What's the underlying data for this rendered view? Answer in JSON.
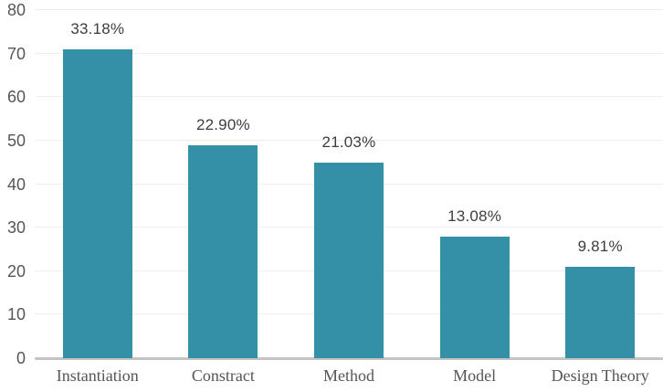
{
  "chart_data": {
    "type": "bar",
    "categories": [
      "Instantiation",
      "Constract",
      "Method",
      "Model",
      "Design Theory"
    ],
    "values": [
      71,
      49,
      45,
      28,
      21
    ],
    "value_labels": [
      "33.18%",
      "22.90%",
      "21.03%",
      "13.08%",
      "9.81%"
    ],
    "title": "",
    "xlabel": "",
    "ylabel": "",
    "ylim": [
      0,
      80
    ],
    "yticks": [
      0,
      10,
      20,
      30,
      40,
      50,
      60,
      70,
      80
    ],
    "grid": "horizontal",
    "legend": "none",
    "colors": {
      "bar": "#3390a6",
      "value_label": "#3d3d3d",
      "ytick_label": "#565656",
      "xtick_label": "#555555",
      "gridline": "#efefef",
      "axis_line": "#c4c4c4",
      "background": "#ffffff"
    }
  }
}
